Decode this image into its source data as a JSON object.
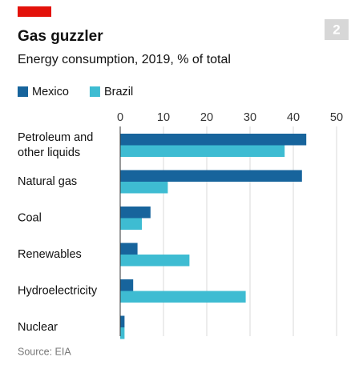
{
  "badge": "2",
  "chart_data": {
    "type": "bar",
    "orientation": "horizontal",
    "title": "Gas guzzler",
    "subtitle": "Energy consumption, 2019, % of total",
    "source": "Source: EIA",
    "categories": [
      "Petroleum and\nother liquids",
      "Natural gas",
      "Coal",
      "Renewables",
      "Hydroelectricity",
      "Nuclear"
    ],
    "series": [
      {
        "name": "Mexico",
        "color": "#17649c",
        "values": [
          43,
          42,
          7,
          4,
          3,
          1
        ]
      },
      {
        "name": "Brazil",
        "color": "#3ebcd2",
        "values": [
          38,
          11,
          5,
          16,
          29,
          1
        ]
      }
    ],
    "xlim": [
      0,
      50
    ],
    "xticks": [
      0,
      10,
      20,
      30,
      40,
      50
    ],
    "grid": true,
    "legend": "top-left"
  }
}
